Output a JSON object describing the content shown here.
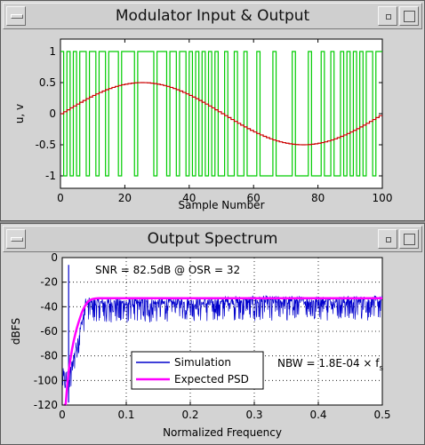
{
  "windows": [
    {
      "title": "Modulator Input & Output"
    },
    {
      "title": "Output Spectrum"
    }
  ],
  "chart_data": [
    {
      "type": "line",
      "title": "Modulator Input & Output",
      "xlabel": "Sample Number",
      "ylabel": "u, v",
      "xlim": [
        0,
        100
      ],
      "ylim": [
        -1.2,
        1.2
      ],
      "xticks": [
        0,
        20,
        40,
        60,
        80,
        100
      ],
      "yticks": [
        -1,
        -0.5,
        0,
        0.5,
        1
      ],
      "grid": false,
      "series": [
        {
          "key": "u",
          "color": "#cc0000",
          "style": "steps",
          "description_formula": "0.5*sin(2*pi*n/100)",
          "x_range": [
            0,
            100
          ]
        },
        {
          "key": "v",
          "color": "#00cc00",
          "style": "steps",
          "levels": [
            -1,
            1
          ],
          "values": [
            1,
            -1,
            1,
            -1,
            1,
            -1,
            1,
            1,
            -1,
            1,
            1,
            -1,
            1,
            1,
            -1,
            1,
            1,
            1,
            -1,
            1,
            1,
            1,
            1,
            -1,
            1,
            1,
            1,
            1,
            1,
            -1,
            1,
            1,
            1,
            -1,
            1,
            1,
            -1,
            1,
            1,
            -1,
            1,
            -1,
            1,
            -1,
            1,
            -1,
            1,
            -1,
            1,
            -1,
            -1,
            1,
            -1,
            -1,
            1,
            -1,
            -1,
            1,
            -1,
            -1,
            -1,
            1,
            -1,
            -1,
            -1,
            -1,
            1,
            -1,
            -1,
            -1,
            -1,
            -1,
            1,
            -1,
            -1,
            -1,
            -1,
            1,
            -1,
            -1,
            -1,
            1,
            -1,
            -1,
            1,
            -1,
            -1,
            1,
            -1,
            1,
            -1,
            1,
            -1,
            1,
            -1,
            1,
            1,
            -1,
            1,
            1
          ]
        }
      ]
    },
    {
      "type": "line",
      "title": "Output Spectrum",
      "xlabel": "Normalized Frequency",
      "ylabel": "dBFS",
      "xlim": [
        0,
        0.5
      ],
      "ylim": [
        -120,
        0
      ],
      "xticks": [
        0,
        0.1,
        0.2,
        0.3,
        0.4,
        0.5
      ],
      "yticks": [
        0,
        -20,
        -40,
        -60,
        -80,
        -100,
        -120
      ],
      "grid": true,
      "annotations": [
        "SNR = 82.5dB @ OSR = 32",
        "NBW = 1.8E-04 × f"
      ],
      "annotation_subscript": "s",
      "legend": {
        "placement": "bottom-center",
        "entries": [
          "Simulation",
          "Expected PSD"
        ]
      },
      "series": [
        {
          "name": "Simulation",
          "color": "#0000cc",
          "noise_floor_dB": -36,
          "signal_peak": {
            "x": 0.01,
            "y": -6
          }
        },
        {
          "name": "Expected PSD",
          "color": "#ff00ff",
          "plateau_dB": -33,
          "corner": 0.04
        }
      ]
    }
  ]
}
